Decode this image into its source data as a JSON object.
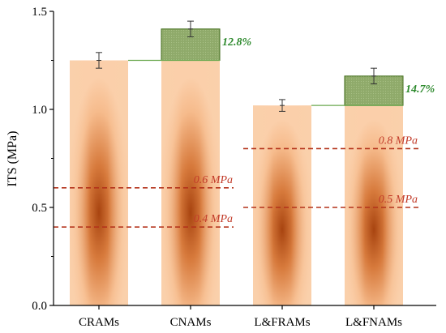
{
  "chart_data": {
    "type": "bar",
    "ylabel": "ITS (MPa)",
    "xlabel": "",
    "ylim": [
      0.0,
      1.5
    ],
    "yticks": [
      "0.0",
      "0.5",
      "1.0",
      "1.5"
    ],
    "categories": [
      "CRAMs",
      "CNAMs",
      "L&FRAMs",
      "L&FNAMs"
    ],
    "values": [
      1.25,
      1.41,
      1.02,
      1.17
    ],
    "errors": [
      0.04,
      0.04,
      0.03,
      0.04
    ],
    "increments": [
      {
        "category": "CNAMs",
        "base": 1.25,
        "top": 1.41,
        "label": "12.8%"
      },
      {
        "category": "L&FNAMs",
        "base": 1.02,
        "top": 1.17,
        "label": "14.7%"
      }
    ],
    "thresholds": [
      {
        "value": 0.6,
        "label": "0.6 MPa",
        "group": "left"
      },
      {
        "value": 0.4,
        "label": "0.4 MPa",
        "group": "left"
      },
      {
        "value": 0.8,
        "label": "0.8 MPa",
        "group": "right"
      },
      {
        "value": 0.5,
        "label": "0.5 MPa",
        "group": "right"
      }
    ],
    "colors": {
      "bar_light": "#f9c8a0",
      "bar_mid": "#efa06a",
      "bar_dark": "#a84410",
      "increment": "#8faa6a",
      "increment_border": "#3f6a18",
      "gain_text": "#2e8a2e",
      "threshold": "#b4321a",
      "threshold_text": "#c23c2a",
      "connector": "#6aa84f"
    }
  }
}
